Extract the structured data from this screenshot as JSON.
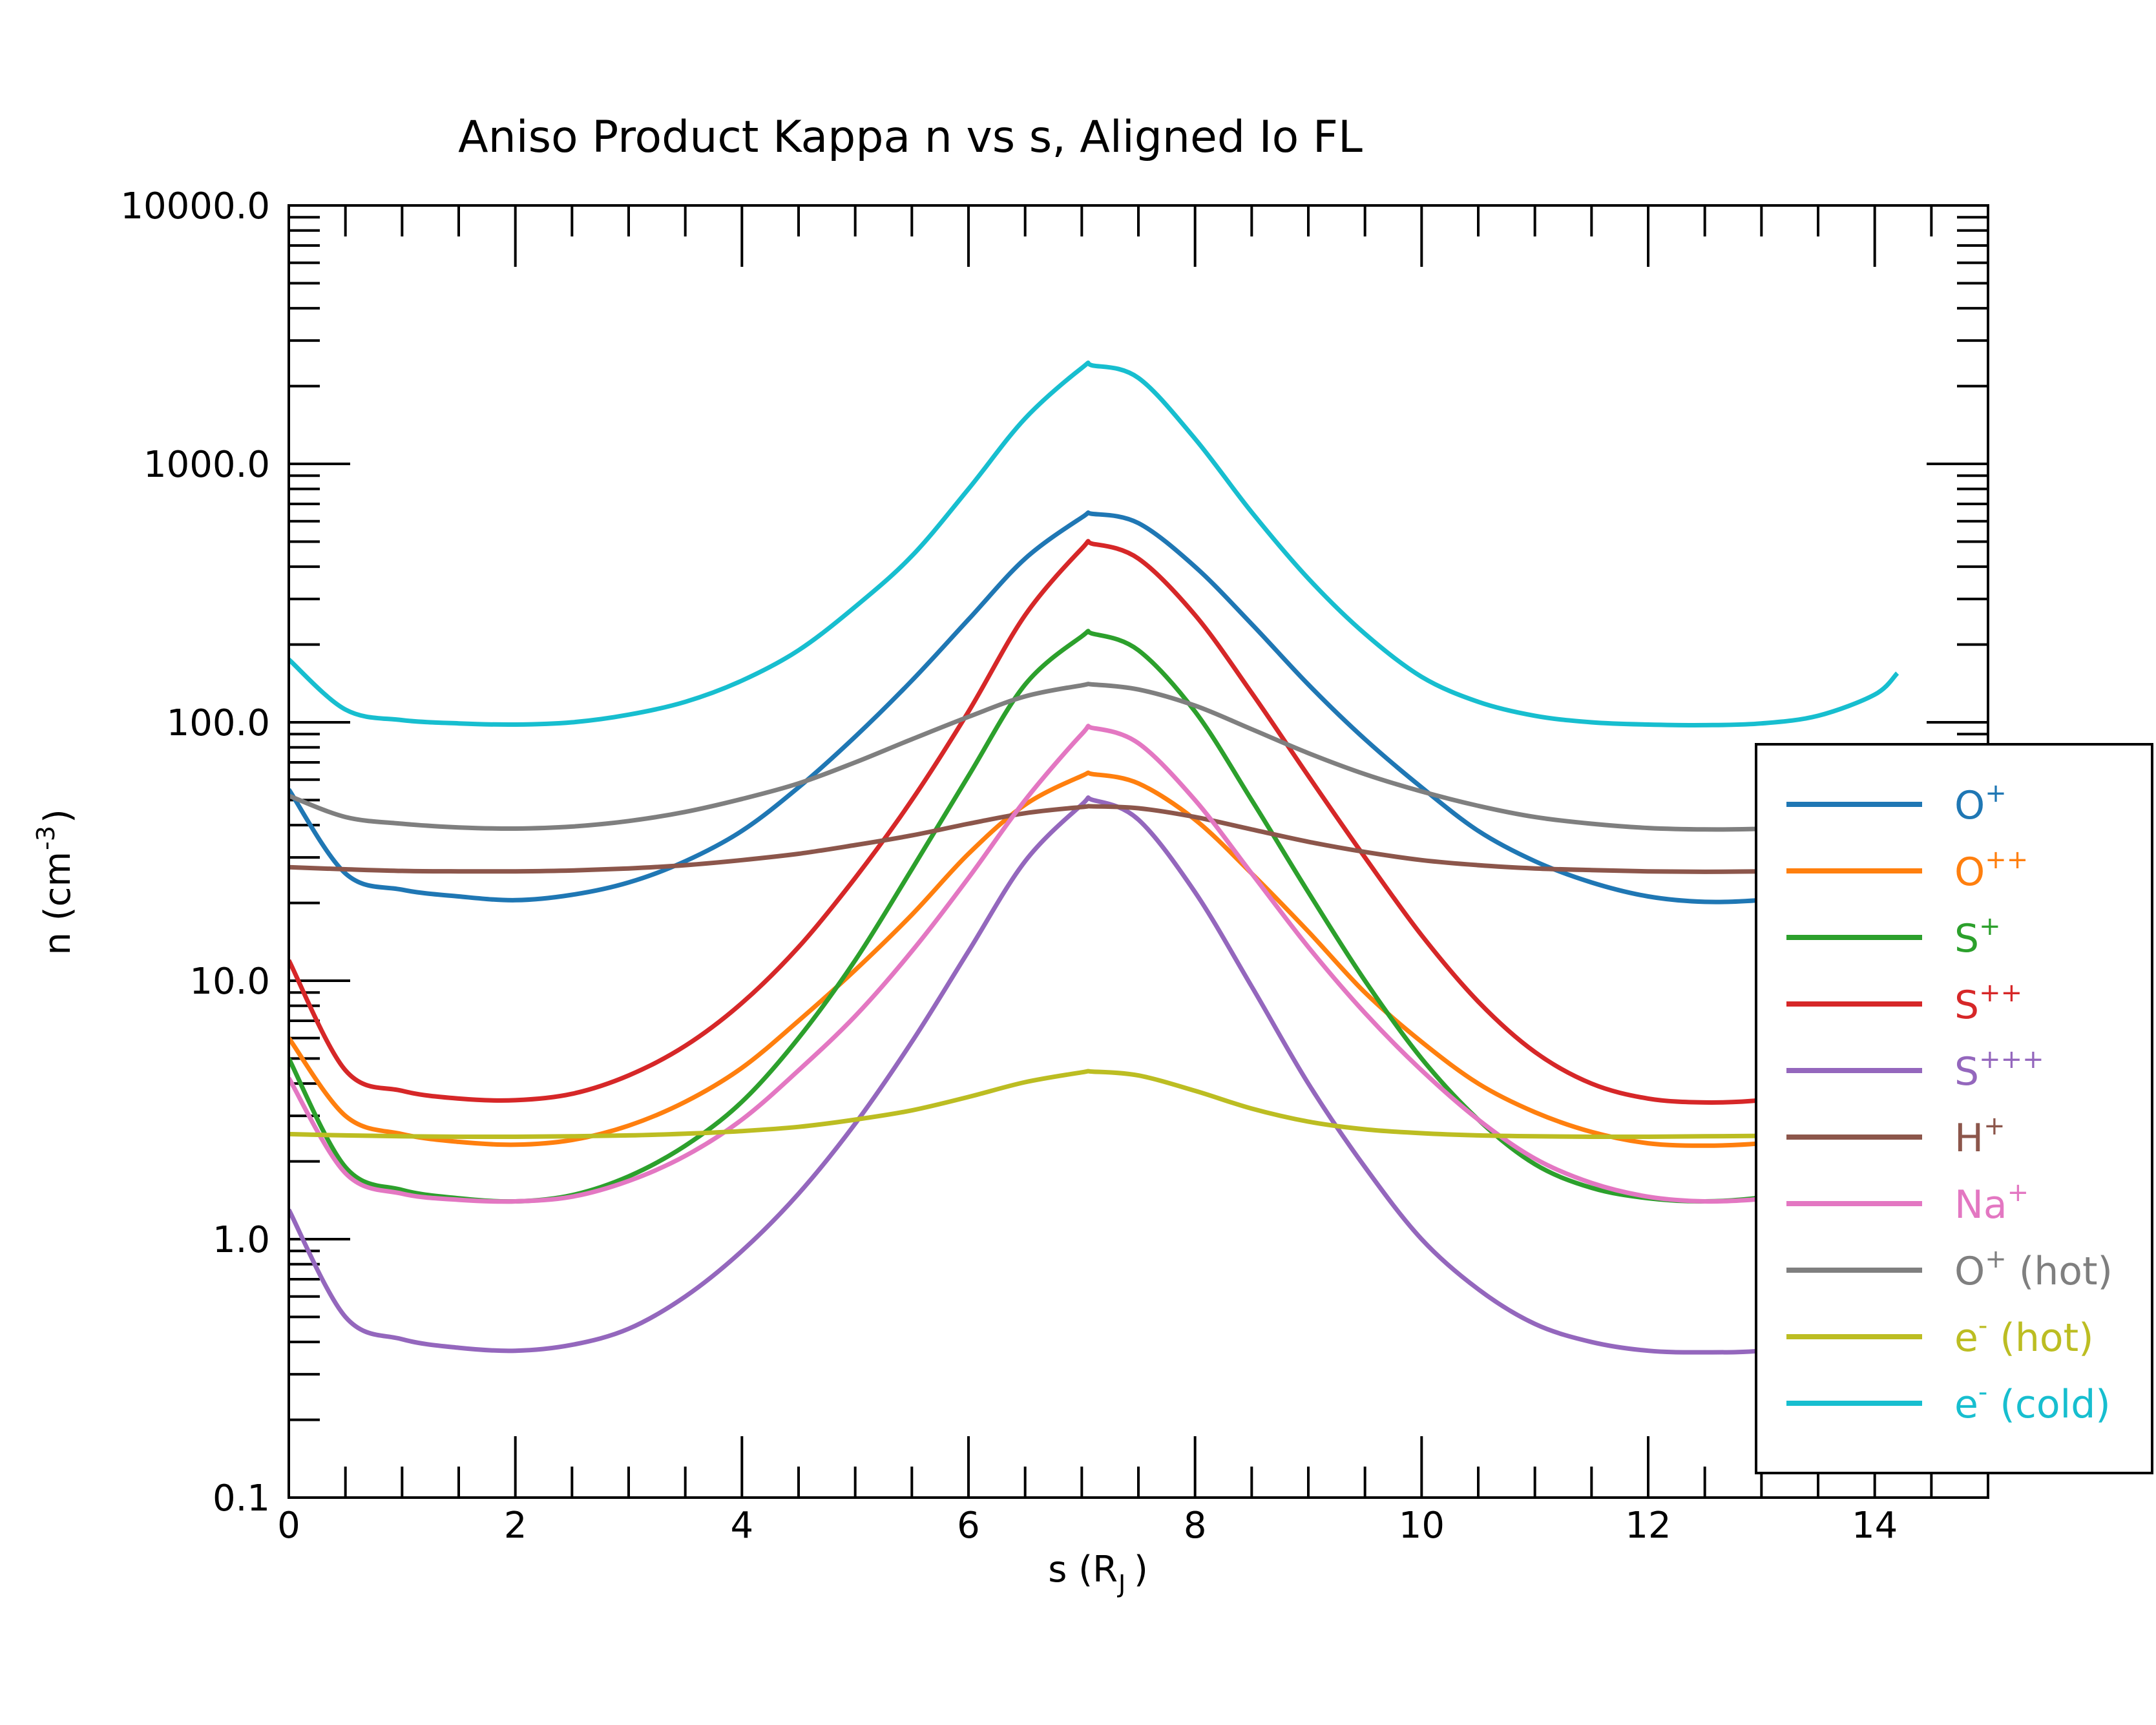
{
  "chart_data": {
    "type": "line",
    "title": "Aniso Product Kappa n vs s, Aligned Io FL",
    "xlabel": {
      "main": "s (R",
      "sub": "J",
      "end": ")"
    },
    "ylabel": {
      "main": "n (cm",
      "sup": "-3",
      "end": ")"
    },
    "xlim": [
      0,
      15
    ],
    "ylim": [
      0.1,
      10000
    ],
    "yscale": "log",
    "x_ticks": [
      0,
      2,
      4,
      6,
      8,
      10,
      12,
      14
    ],
    "x_tick_labels": [
      "0",
      "2",
      "4",
      "6",
      "8",
      "10",
      "12",
      "14"
    ],
    "y_ticks": [
      0.1,
      1,
      10,
      100,
      1000,
      10000
    ],
    "y_tick_labels": [
      "0.1",
      "1.0",
      "10.0",
      "100.0",
      "1000.0",
      "10000.0"
    ],
    "grid": false,
    "legend_position": "right",
    "series": [
      {
        "name": "O",
        "sup": "+",
        "suffix": "",
        "color": "#1f77b4",
        "x": [
          0,
          0.5,
          1,
          1.5,
          2,
          2.5,
          3,
          3.5,
          4,
          4.5,
          5,
          5.5,
          6,
          6.5,
          7,
          7.1,
          7.5,
          8,
          8.5,
          9,
          9.5,
          10,
          10.5,
          11,
          11.5,
          12,
          12.5,
          13,
          13.5,
          14,
          14.2
        ],
        "y": [
          55,
          26,
          22.5,
          21.2,
          20.5,
          21.5,
          24,
          29,
          38,
          56,
          88,
          145,
          250,
          430,
          620,
          640,
          590,
          400,
          240,
          140,
          86,
          56,
          38,
          29,
          24,
          21.2,
          20.2,
          20.5,
          21.5,
          24,
          27
        ]
      },
      {
        "name": "O",
        "sup": "++",
        "suffix": "",
        "color": "#ff7f0e",
        "x": [
          0,
          0.5,
          1,
          1.5,
          2,
          2.5,
          3,
          3.5,
          4,
          4.5,
          5,
          5.5,
          6,
          6.5,
          7,
          7.1,
          7.5,
          8,
          8.5,
          9,
          9.5,
          10,
          10.5,
          11,
          11.5,
          12,
          12.5,
          13,
          13.5,
          14,
          14.2
        ],
        "y": [
          6,
          3,
          2.55,
          2.38,
          2.32,
          2.42,
          2.75,
          3.4,
          4.6,
          7,
          11,
          18,
          31,
          48,
          62,
          63,
          58,
          42,
          26,
          15.5,
          9,
          5.8,
          4,
          3.1,
          2.6,
          2.35,
          2.3,
          2.35,
          2.5,
          2.8,
          3
        ]
      },
      {
        "name": "S",
        "sup": "+",
        "suffix": "",
        "color": "#2ca02c",
        "x": [
          0,
          0.5,
          1,
          1.5,
          2,
          2.5,
          3,
          3.5,
          4,
          4.5,
          5,
          5.5,
          6,
          6.5,
          7,
          7.1,
          7.5,
          8,
          8.5,
          9,
          9.5,
          10,
          10.5,
          11,
          11.5,
          12,
          12.5,
          13,
          13.5,
          14,
          14.2
        ],
        "y": [
          5,
          1.9,
          1.55,
          1.44,
          1.4,
          1.48,
          1.75,
          2.3,
          3.4,
          6,
          12,
          27,
          62,
          140,
          215,
          220,
          190,
          110,
          50,
          22,
          10,
          5,
          2.9,
          1.95,
          1.58,
          1.44,
          1.4,
          1.45,
          1.6,
          1.9,
          2.2
        ]
      },
      {
        "name": "S",
        "sup": "++",
        "suffix": "",
        "color": "#d62728",
        "x": [
          0,
          0.5,
          1,
          1.5,
          2,
          2.5,
          3,
          3.5,
          4,
          4.5,
          5,
          5.5,
          6,
          6.5,
          7,
          7.1,
          7.5,
          8,
          8.5,
          9,
          9.5,
          10,
          10.5,
          11,
          11.5,
          12,
          12.5,
          13,
          13.5,
          14,
          14.2
        ],
        "y": [
          12,
          4.5,
          3.75,
          3.5,
          3.45,
          3.65,
          4.3,
          5.6,
          8.2,
          13.5,
          25,
          50,
          110,
          260,
          470,
          490,
          430,
          260,
          130,
          62,
          30,
          15,
          8.3,
          5.3,
          4,
          3.5,
          3.38,
          3.45,
          3.7,
          4.4,
          5
        ]
      },
      {
        "name": "S",
        "sup": "+++",
        "suffix": "",
        "color": "#9467bd",
        "x": [
          0,
          0.5,
          1,
          1.5,
          2,
          2.5,
          3,
          3.5,
          4,
          4.5,
          5,
          5.5,
          6,
          6.5,
          7,
          7.1,
          7.5,
          8,
          8.5,
          9,
          9.5,
          10,
          10.5,
          11,
          11.5,
          12,
          12.5,
          13,
          13.5,
          14,
          14.2
        ],
        "y": [
          1.3,
          0.5,
          0.41,
          0.38,
          0.37,
          0.39,
          0.45,
          0.6,
          0.9,
          1.5,
          2.8,
          5.8,
          13,
          29,
          48,
          50,
          42,
          22,
          9.5,
          4,
          1.9,
          1,
          0.64,
          0.47,
          0.4,
          0.37,
          0.365,
          0.37,
          0.4,
          0.48,
          0.55
        ]
      },
      {
        "name": "H",
        "sup": "+",
        "suffix": "",
        "color": "#8c564b",
        "x": [
          0,
          0.5,
          1,
          1.5,
          2,
          2.5,
          3,
          3.5,
          4,
          4.5,
          5,
          5.5,
          6,
          6.5,
          7,
          7.1,
          7.5,
          8,
          8.5,
          9,
          9.5,
          10,
          10.5,
          11,
          11.5,
          12,
          12.5,
          13,
          13.5,
          14,
          14.2
        ],
        "y": [
          27.5,
          27,
          26.6,
          26.5,
          26.5,
          26.7,
          27.2,
          28,
          29.3,
          31,
          33.5,
          36.5,
          40.5,
          44.5,
          47,
          47.3,
          46.5,
          43,
          38.5,
          34.5,
          31.5,
          29.3,
          28,
          27.2,
          26.8,
          26.5,
          26.4,
          26.5,
          26.6,
          27,
          27.2
        ]
      },
      {
        "name": "Na",
        "sup": "+",
        "suffix": "",
        "color": "#e377c2",
        "x": [
          0,
          0.5,
          1,
          1.5,
          2,
          2.5,
          3,
          3.5,
          4,
          4.5,
          5,
          5.5,
          6,
          6.5,
          7,
          7.1,
          7.5,
          8,
          8.5,
          9,
          9.5,
          10,
          10.5,
          11,
          11.5,
          12,
          12.5,
          13,
          13.5,
          14,
          14.2
        ],
        "y": [
          4.2,
          1.8,
          1.5,
          1.42,
          1.4,
          1.46,
          1.68,
          2.1,
          2.9,
          4.5,
          7.3,
          13,
          25,
          50,
          90,
          95,
          83,
          50,
          26,
          13.5,
          7.5,
          4.5,
          2.9,
          2.05,
          1.65,
          1.46,
          1.4,
          1.43,
          1.52,
          1.75,
          1.9
        ]
      },
      {
        "name": "O",
        "sup": "+",
        "suffix": " (hot)",
        "color": "#7f7f7f",
        "x": [
          0,
          0.5,
          1,
          1.5,
          2,
          2.5,
          3,
          3.5,
          4,
          4.5,
          5,
          5.5,
          6,
          6.5,
          7,
          7.1,
          7.5,
          8,
          8.5,
          9,
          9.5,
          10,
          10.5,
          11,
          11.5,
          12,
          12.5,
          13,
          13.5,
          14,
          14.2
        ],
        "y": [
          52,
          43,
          40.5,
          39.2,
          38.8,
          39.5,
          41.5,
          45,
          50.5,
          58,
          70,
          86,
          105,
          126,
          139,
          140,
          134,
          116,
          94,
          76,
          63,
          54,
          47.5,
          43,
          40.5,
          39,
          38.5,
          38.7,
          39.5,
          41,
          42
        ]
      },
      {
        "name": "e",
        "sup": "-",
        "suffix": " (hot)",
        "color": "#bcbd22",
        "x": [
          0,
          0.5,
          1,
          1.5,
          2,
          2.5,
          3,
          3.5,
          4,
          4.5,
          5,
          5.5,
          6,
          6.5,
          7,
          7.1,
          7.5,
          8,
          8.5,
          9,
          9.5,
          10,
          10.5,
          11,
          11.5,
          12,
          12.5,
          13,
          13.5,
          14,
          14.2
        ],
        "y": [
          2.55,
          2.52,
          2.5,
          2.49,
          2.49,
          2.5,
          2.52,
          2.56,
          2.62,
          2.72,
          2.9,
          3.15,
          3.55,
          4.05,
          4.42,
          4.45,
          4.3,
          3.75,
          3.2,
          2.85,
          2.66,
          2.57,
          2.52,
          2.5,
          2.49,
          2.49,
          2.5,
          2.51,
          2.52,
          2.54,
          2.55
        ]
      },
      {
        "name": "e",
        "sup": "-",
        "suffix": " (cold)",
        "color": "#17becf",
        "x": [
          0,
          0.5,
          1,
          1.5,
          2,
          2.5,
          3,
          3.5,
          4,
          4.5,
          5,
          5.5,
          6,
          6.5,
          7,
          7.1,
          7.5,
          8,
          8.5,
          9,
          9.5,
          10,
          10.5,
          11,
          11.5,
          12,
          12.5,
          13,
          13.5,
          14,
          14.2
        ],
        "y": [
          175,
          112,
          102,
          99,
          98,
          100,
          107,
          120,
          145,
          190,
          280,
          440,
          800,
          1500,
          2350,
          2400,
          2150,
          1250,
          650,
          360,
          220,
          150,
          120,
          106,
          100,
          98,
          97.5,
          99,
          106,
          128,
          155
        ]
      }
    ]
  }
}
